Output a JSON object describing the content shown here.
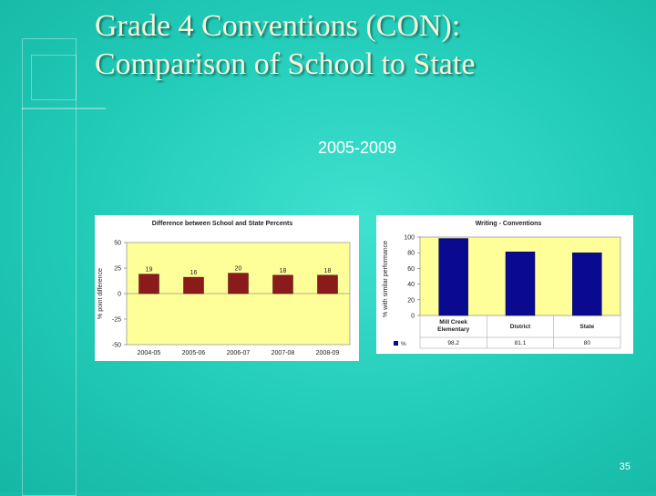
{
  "slide": {
    "title_line1": "Grade 4 Conventions (CON):",
    "title_line2": "Comparison of School to State",
    "subtitle": "2005-2009",
    "page_number": "35"
  },
  "colors": {
    "background": "#21cbb8",
    "plot_area": "#ffff99",
    "left_bars": "#8b1a1a",
    "right_bars": "#0a0a90"
  },
  "chart_data": [
    {
      "type": "bar",
      "title": "Difference between School and State Percents",
      "ylabel": "% point difference",
      "xlabel": "",
      "categories": [
        "2004-05",
        "2005-06",
        "2006-07",
        "2007-08",
        "2008-09"
      ],
      "values": [
        19,
        16,
        20,
        18,
        18
      ],
      "data_labels": [
        "19",
        "16",
        "20",
        "18",
        "18"
      ],
      "ylim": [
        -50,
        50
      ],
      "yticks": [
        "50",
        "25",
        "0",
        "-25",
        "-50"
      ],
      "grid": false,
      "legend": "none"
    },
    {
      "type": "bar",
      "title": "Writing - Conventions",
      "ylabel": "% with similar performance",
      "xlabel": "",
      "categories": [
        "Mill Creek Elementary",
        "District",
        "State"
      ],
      "series": [
        {
          "name": "%",
          "values": [
            98.2,
            81.1,
            80
          ]
        }
      ],
      "table_values": [
        "98.2",
        "81.1",
        "80"
      ],
      "legend_label": "%",
      "ylim": [
        0,
        100
      ],
      "yticks": [
        "100",
        "80",
        "60",
        "40",
        "20",
        "0"
      ],
      "grid": false,
      "legend": "data-table"
    }
  ]
}
